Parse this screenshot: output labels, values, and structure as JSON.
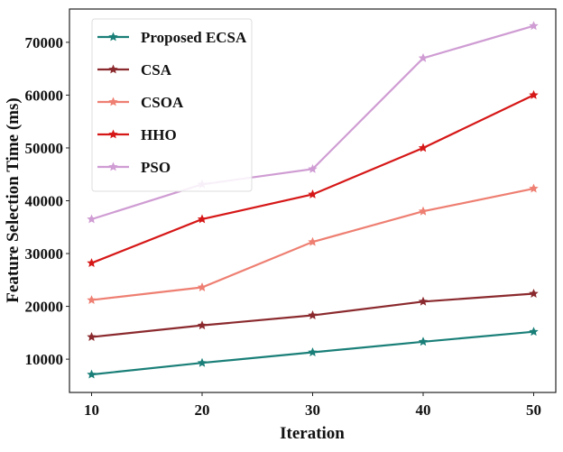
{
  "chart_data": {
    "type": "line",
    "title": "",
    "xlabel": "Iteration",
    "ylabel": "Feature Selection Time (ms)",
    "x": [
      10,
      20,
      30,
      40,
      50
    ],
    "xticks": [
      10,
      20,
      30,
      40,
      50
    ],
    "xtick_labels": [
      "10",
      "20",
      "30",
      "40",
      "50"
    ],
    "yticks": [
      10000,
      20000,
      30000,
      40000,
      50000,
      60000,
      70000
    ],
    "ytick_labels": [
      "10000",
      "20000",
      "30000",
      "40000",
      "50000",
      "60000",
      "70000"
    ],
    "xlim": [
      8,
      52
    ],
    "ylim": [
      3700,
      76300
    ],
    "grid": false,
    "legend_position": "top-left",
    "series": [
      {
        "name": "Proposed ECSA",
        "color": "#1a7f78",
        "marker": "star",
        "values": [
          7100,
          9300,
          11300,
          13300,
          15200
        ]
      },
      {
        "name": "CSA",
        "color": "#8b2a2e",
        "marker": "star",
        "values": [
          14200,
          16400,
          18300,
          20900,
          22400
        ]
      },
      {
        "name": "CSOA",
        "color": "#ee7f72",
        "marker": "star",
        "values": [
          21200,
          23600,
          32200,
          38000,
          42300
        ]
      },
      {
        "name": "HHO",
        "color": "#d61717",
        "marker": "star",
        "values": [
          28200,
          36500,
          41200,
          50000,
          60000
        ]
      },
      {
        "name": "PSO",
        "color": "#cf9cd3",
        "marker": "star",
        "values": [
          36500,
          43100,
          46000,
          67000,
          73100
        ]
      }
    ]
  }
}
